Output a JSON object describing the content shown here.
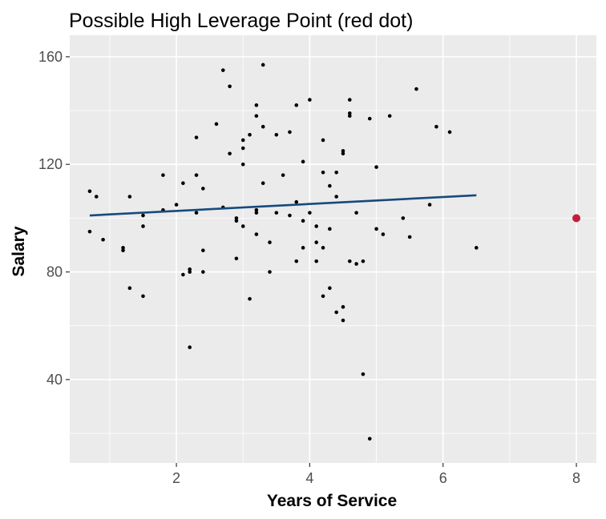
{
  "chart_data": {
    "type": "scatter",
    "title": "Possible High Leverage Point (red dot)",
    "xlabel": "Years of Service",
    "ylabel": "Salary",
    "xlim": [
      0.4,
      8.3
    ],
    "ylim": [
      9,
      168
    ],
    "x_ticks": [
      2,
      4,
      6,
      8
    ],
    "y_ticks": [
      40,
      80,
      120,
      160
    ],
    "x_minor": [
      1,
      3,
      5,
      7
    ],
    "y_minor": [
      20,
      60,
      100,
      140
    ],
    "grid": true,
    "legend": "none",
    "colors": {
      "panel": "#ebebeb",
      "grid": "#ffffff",
      "points": "#000000",
      "fit_line": "#174a7e",
      "highlight": "#c41e3a",
      "tick_text": "#4d4d4d",
      "tick_mark": "#333333"
    },
    "points": [
      {
        "x": 0.7,
        "y": 110
      },
      {
        "x": 0.7,
        "y": 95
      },
      {
        "x": 0.8,
        "y": 108
      },
      {
        "x": 0.9,
        "y": 92
      },
      {
        "x": 1.2,
        "y": 88
      },
      {
        "x": 1.2,
        "y": 89
      },
      {
        "x": 1.3,
        "y": 108
      },
      {
        "x": 1.3,
        "y": 74
      },
      {
        "x": 1.5,
        "y": 97
      },
      {
        "x": 1.5,
        "y": 101
      },
      {
        "x": 1.5,
        "y": 71
      },
      {
        "x": 1.8,
        "y": 103
      },
      {
        "x": 1.8,
        "y": 116
      },
      {
        "x": 2.0,
        "y": 105
      },
      {
        "x": 2.1,
        "y": 113
      },
      {
        "x": 2.1,
        "y": 79
      },
      {
        "x": 2.2,
        "y": 80
      },
      {
        "x": 2.2,
        "y": 81
      },
      {
        "x": 2.2,
        "y": 52
      },
      {
        "x": 2.3,
        "y": 130
      },
      {
        "x": 2.3,
        "y": 116
      },
      {
        "x": 2.3,
        "y": 102
      },
      {
        "x": 2.4,
        "y": 111
      },
      {
        "x": 2.4,
        "y": 88
      },
      {
        "x": 2.4,
        "y": 80
      },
      {
        "x": 2.6,
        "y": 135
      },
      {
        "x": 2.7,
        "y": 155
      },
      {
        "x": 2.7,
        "y": 104
      },
      {
        "x": 2.8,
        "y": 149
      },
      {
        "x": 2.8,
        "y": 124
      },
      {
        "x": 2.9,
        "y": 99
      },
      {
        "x": 2.9,
        "y": 100
      },
      {
        "x": 2.9,
        "y": 85
      },
      {
        "x": 3.0,
        "y": 129
      },
      {
        "x": 3.0,
        "y": 126
      },
      {
        "x": 3.0,
        "y": 120
      },
      {
        "x": 3.0,
        "y": 97
      },
      {
        "x": 3.1,
        "y": 131
      },
      {
        "x": 3.1,
        "y": 70
      },
      {
        "x": 3.2,
        "y": 142
      },
      {
        "x": 3.2,
        "y": 138
      },
      {
        "x": 3.2,
        "y": 102
      },
      {
        "x": 3.2,
        "y": 103
      },
      {
        "x": 3.2,
        "y": 94
      },
      {
        "x": 3.3,
        "y": 157
      },
      {
        "x": 3.3,
        "y": 134
      },
      {
        "x": 3.3,
        "y": 113
      },
      {
        "x": 3.4,
        "y": 91
      },
      {
        "x": 3.4,
        "y": 80
      },
      {
        "x": 3.5,
        "y": 131
      },
      {
        "x": 3.5,
        "y": 102
      },
      {
        "x": 3.6,
        "y": 116
      },
      {
        "x": 3.7,
        "y": 132
      },
      {
        "x": 3.7,
        "y": 101
      },
      {
        "x": 3.8,
        "y": 142
      },
      {
        "x": 3.8,
        "y": 106
      },
      {
        "x": 3.8,
        "y": 84
      },
      {
        "x": 3.9,
        "y": 121
      },
      {
        "x": 3.9,
        "y": 99
      },
      {
        "x": 3.9,
        "y": 89
      },
      {
        "x": 4.0,
        "y": 144
      },
      {
        "x": 4.0,
        "y": 102
      },
      {
        "x": 4.1,
        "y": 97
      },
      {
        "x": 4.1,
        "y": 91
      },
      {
        "x": 4.1,
        "y": 84
      },
      {
        "x": 4.2,
        "y": 129
      },
      {
        "x": 4.2,
        "y": 117
      },
      {
        "x": 4.2,
        "y": 89
      },
      {
        "x": 4.2,
        "y": 71
      },
      {
        "x": 4.3,
        "y": 112
      },
      {
        "x": 4.3,
        "y": 96
      },
      {
        "x": 4.3,
        "y": 74
      },
      {
        "x": 4.4,
        "y": 117
      },
      {
        "x": 4.4,
        "y": 108
      },
      {
        "x": 4.4,
        "y": 65
      },
      {
        "x": 4.5,
        "y": 125
      },
      {
        "x": 4.5,
        "y": 124
      },
      {
        "x": 4.5,
        "y": 67
      },
      {
        "x": 4.5,
        "y": 62
      },
      {
        "x": 4.6,
        "y": 144
      },
      {
        "x": 4.6,
        "y": 139
      },
      {
        "x": 4.6,
        "y": 138
      },
      {
        "x": 4.6,
        "y": 84
      },
      {
        "x": 4.7,
        "y": 102
      },
      {
        "x": 4.7,
        "y": 83
      },
      {
        "x": 4.8,
        "y": 84
      },
      {
        "x": 4.8,
        "y": 42
      },
      {
        "x": 4.9,
        "y": 137
      },
      {
        "x": 4.9,
        "y": 18
      },
      {
        "x": 5.0,
        "y": 119
      },
      {
        "x": 5.0,
        "y": 96
      },
      {
        "x": 5.1,
        "y": 94
      },
      {
        "x": 5.2,
        "y": 138
      },
      {
        "x": 5.4,
        "y": 100
      },
      {
        "x": 5.5,
        "y": 93
      },
      {
        "x": 5.6,
        "y": 148
      },
      {
        "x": 5.8,
        "y": 105
      },
      {
        "x": 5.9,
        "y": 134
      },
      {
        "x": 6.1,
        "y": 132
      },
      {
        "x": 6.5,
        "y": 89
      }
    ],
    "highlight_point": {
      "x": 8.0,
      "y": 100
    },
    "fit_line": {
      "x": [
        0.7,
        6.5
      ],
      "y": [
        101,
        108.5
      ]
    }
  }
}
